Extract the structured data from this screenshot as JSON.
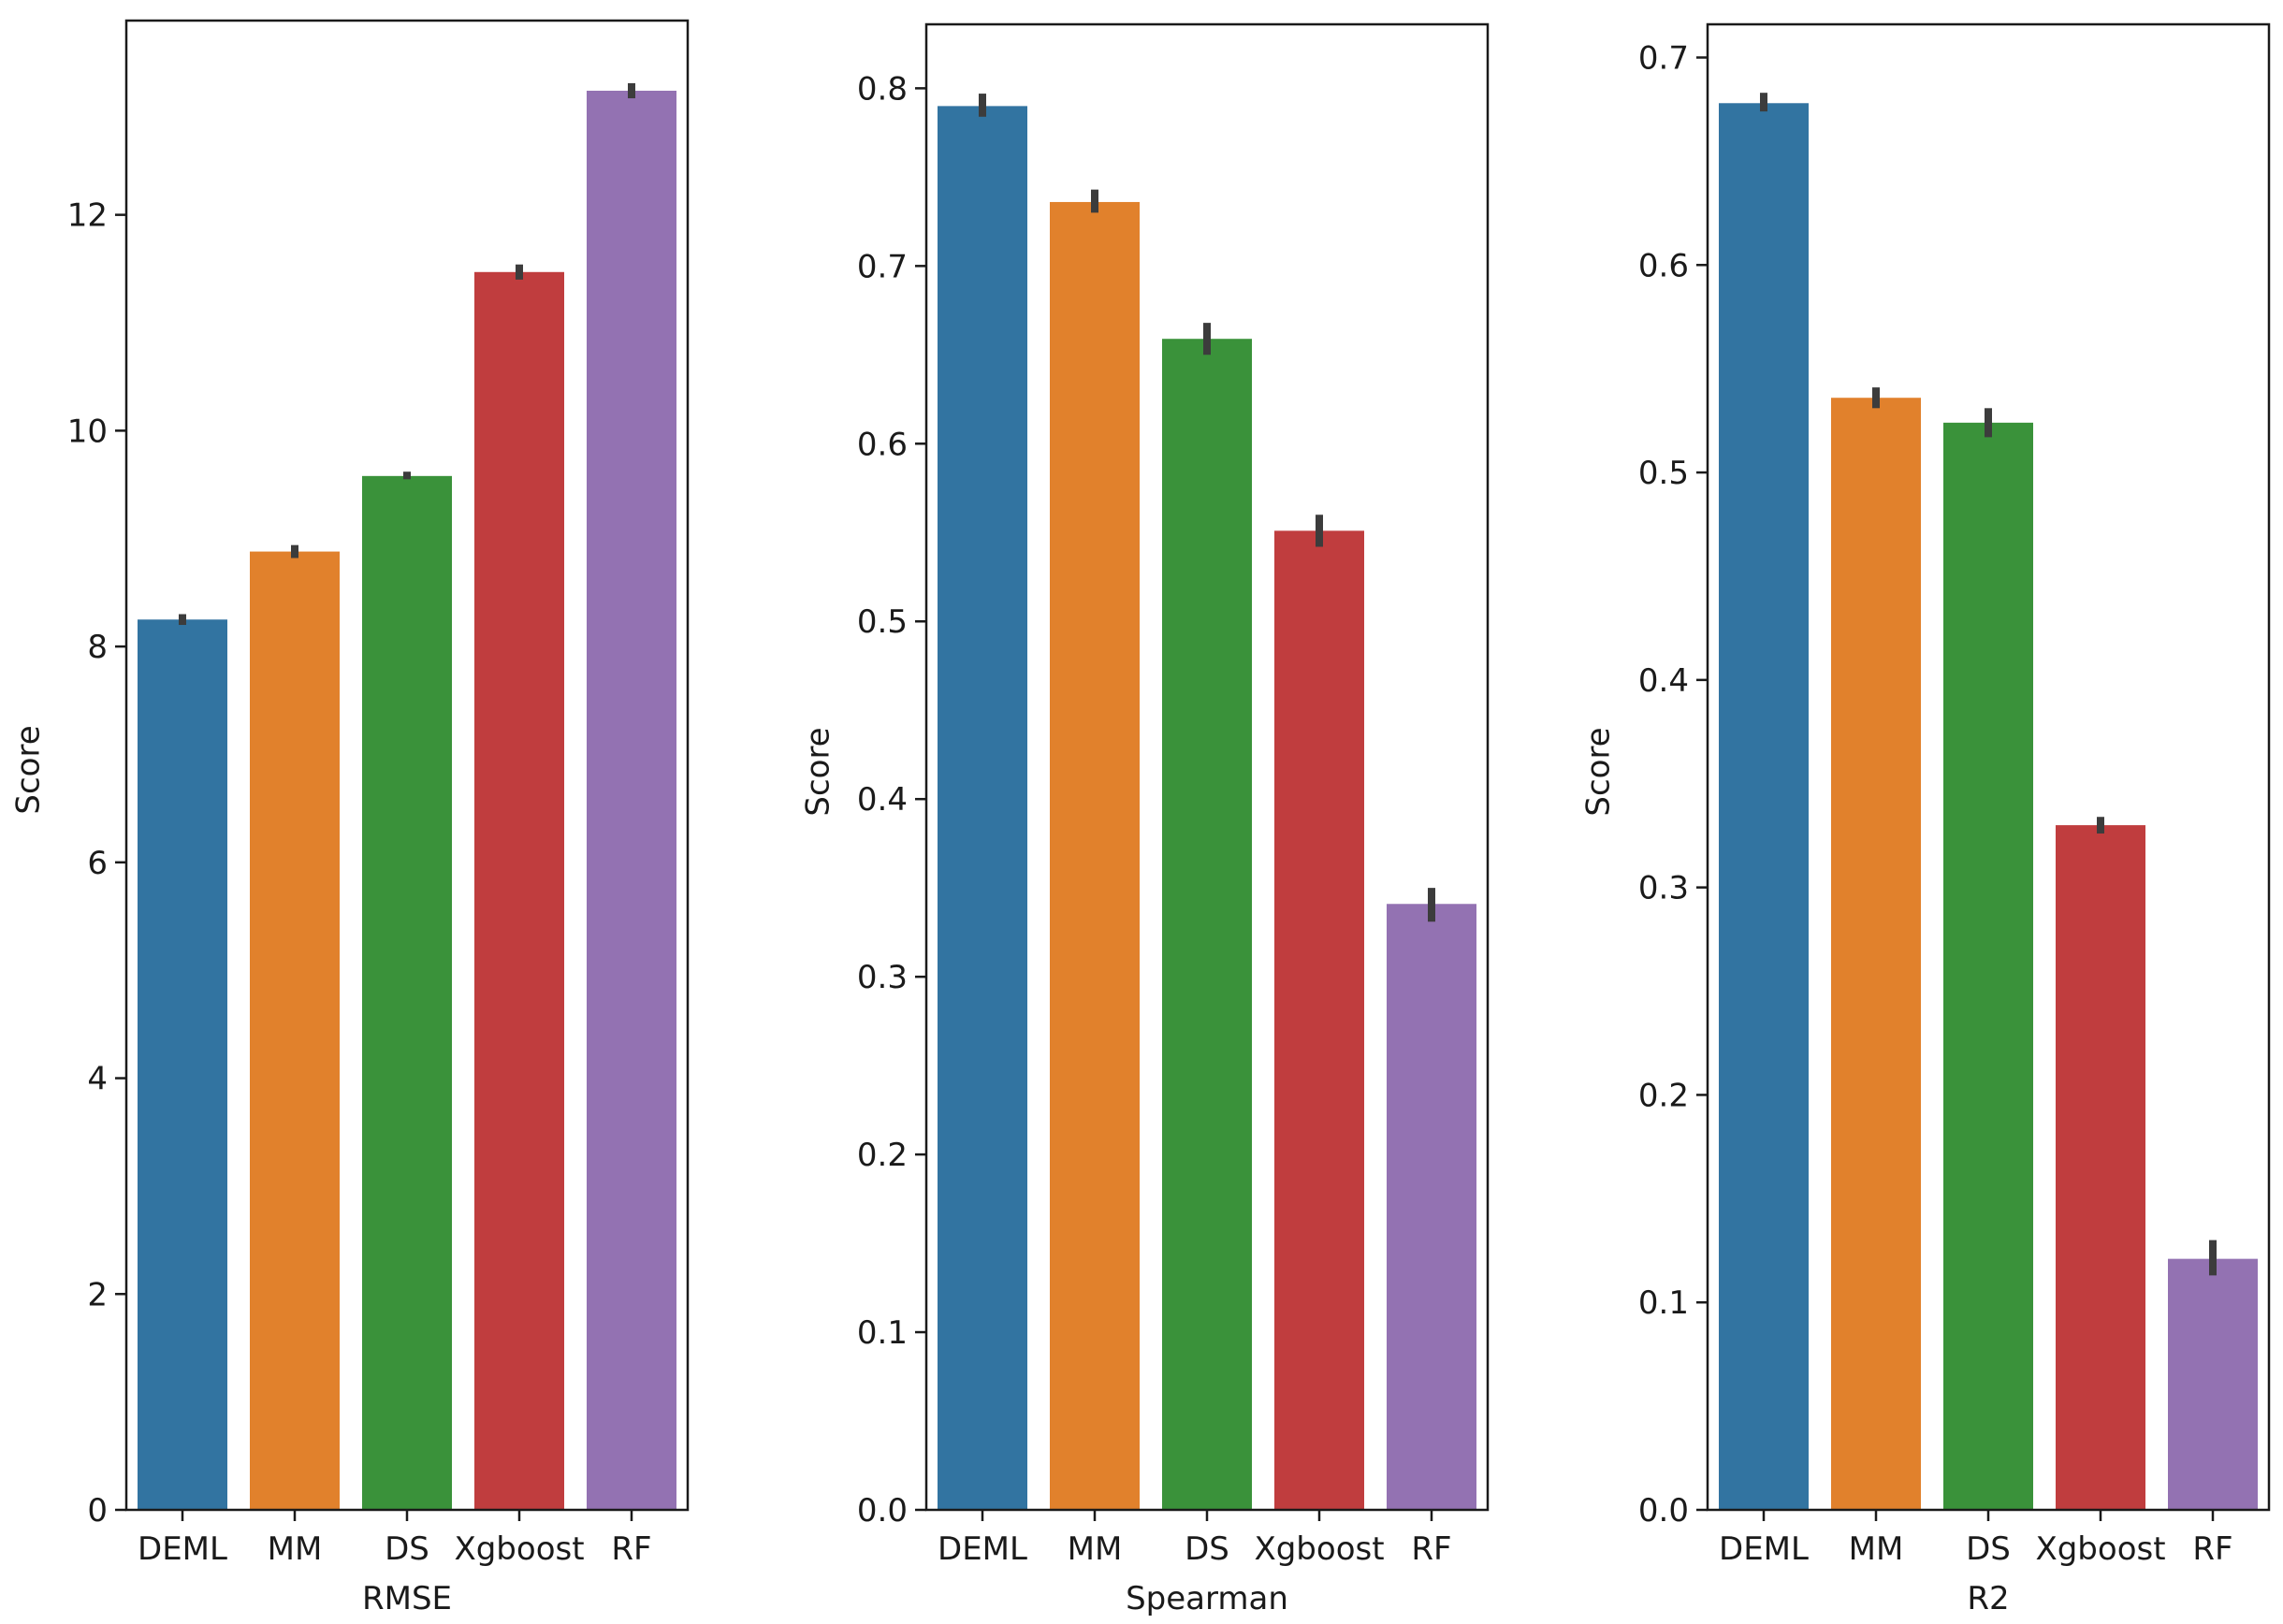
{
  "colors": [
    "#3274a1",
    "#e1812c",
    "#3a923a",
    "#c03d3e",
    "#9372b2"
  ],
  "chart_data": [
    {
      "type": "bar",
      "categories": [
        "DEML",
        "MM",
        "DS",
        "Xgboost",
        "RF"
      ],
      "values": [
        8.25,
        8.88,
        9.58,
        11.47,
        13.15
      ],
      "errors": [
        [
          8.2,
          8.3
        ],
        [
          8.82,
          8.94
        ],
        [
          9.55,
          9.62
        ],
        [
          11.4,
          11.54
        ],
        [
          13.08,
          13.22
        ]
      ],
      "xlabel": "RMSE",
      "ylabel": "Score",
      "ylim": [
        0,
        13.8
      ],
      "yticks": [
        0,
        2,
        4,
        6,
        8,
        10,
        12
      ],
      "ytick_labels": [
        "0",
        "2",
        "4",
        "6",
        "8",
        "10",
        "12"
      ]
    },
    {
      "type": "bar",
      "categories": [
        "DEML",
        "MM",
        "DS",
        "Xgboost",
        "RF"
      ],
      "values": [
        0.79,
        0.736,
        0.659,
        0.551,
        0.341
      ],
      "errors": [
        [
          0.784,
          0.797
        ],
        [
          0.73,
          0.743
        ],
        [
          0.65,
          0.668
        ],
        [
          0.542,
          0.56
        ],
        [
          0.331,
          0.35
        ]
      ],
      "xlabel": "Spearman",
      "ylabel": "Score",
      "ylim": [
        0,
        0.836
      ],
      "yticks": [
        0.0,
        0.1,
        0.2,
        0.3,
        0.4,
        0.5,
        0.6,
        0.7,
        0.8
      ],
      "ytick_labels": [
        "0.0",
        "0.1",
        "0.2",
        "0.3",
        "0.4",
        "0.5",
        "0.6",
        "0.7",
        "0.8"
      ]
    },
    {
      "type": "bar",
      "categories": [
        "DEML",
        "MM",
        "DS",
        "Xgboost",
        "RF"
      ],
      "values": [
        0.678,
        0.536,
        0.524,
        0.33,
        0.121
      ],
      "errors": [
        [
          0.674,
          0.683
        ],
        [
          0.531,
          0.541
        ],
        [
          0.517,
          0.531
        ],
        [
          0.326,
          0.334
        ],
        [
          0.113,
          0.13
        ]
      ],
      "xlabel": "R2",
      "ylabel": "Score",
      "ylim": [
        0,
        0.716
      ],
      "yticks": [
        0.0,
        0.1,
        0.2,
        0.3,
        0.4,
        0.5,
        0.6,
        0.7
      ],
      "ytick_labels": [
        "0.0",
        "0.1",
        "0.2",
        "0.3",
        "0.4",
        "0.5",
        "0.6",
        "0.7"
      ]
    }
  ]
}
